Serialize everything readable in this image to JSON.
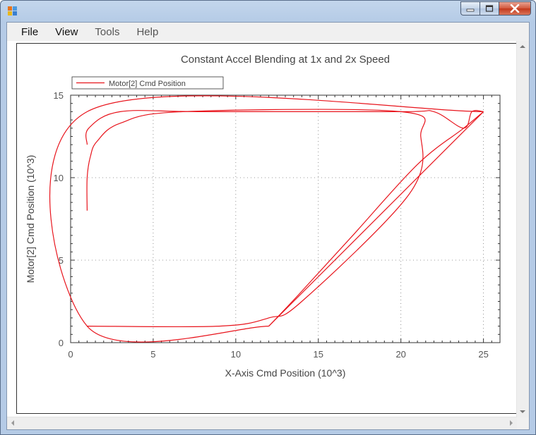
{
  "menu": {
    "file": "File",
    "view": "View",
    "tools": "Tools",
    "help": "Help"
  },
  "chart_data": {
    "type": "line",
    "title": "Constant Accel Blending at 1x and 2x Speed",
    "xlabel": "X-Axis Cmd Position (10^3)",
    "ylabel": "Motor[2] Cmd Position (10^3)",
    "xlim": [
      0,
      26
    ],
    "ylim": [
      0,
      15
    ],
    "xticks": [
      "0",
      "5",
      "10",
      "15",
      "20",
      "25"
    ],
    "yticks": [
      "0",
      "5",
      "10",
      "15"
    ],
    "grid": true,
    "legend_position": "top-left",
    "color": "#e8141c",
    "series": [
      {
        "name": "Motor[2] Cmd Position",
        "segments": [
          {
            "x": [
              12,
              25
            ],
            "y": [
              1,
              14
            ]
          },
          {
            "x": [
              25,
              1,
              1,
              12
            ],
            "y": [
              14,
              14,
              1,
              1
            ]
          },
          {
            "x": [
              12,
              13.8,
              17,
              21,
              23.8,
              25
            ],
            "y": [
              1,
              2.9,
              6.4,
              10.8,
              13.0,
              14
            ]
          },
          {
            "x": [
              25,
              24.3,
              23.8,
              22,
              20,
              8,
              3,
              1.1,
              1
            ],
            "y": [
              14,
              14.0,
              13.0,
              14.0,
              14.0,
              14,
              14,
              13.0,
              12
            ]
          },
          {
            "x": [
              1,
              1,
              1.2,
              1.6,
              3,
              6.8,
              20,
              21.2,
              20.5,
              14,
              12,
              9,
              1
            ],
            "y": [
              8,
              10,
              11.3,
              12.2,
              13.3,
              14,
              14,
              12.5,
              9.0,
              2.5,
              1.5,
              1,
              1
            ]
          }
        ]
      }
    ]
  }
}
